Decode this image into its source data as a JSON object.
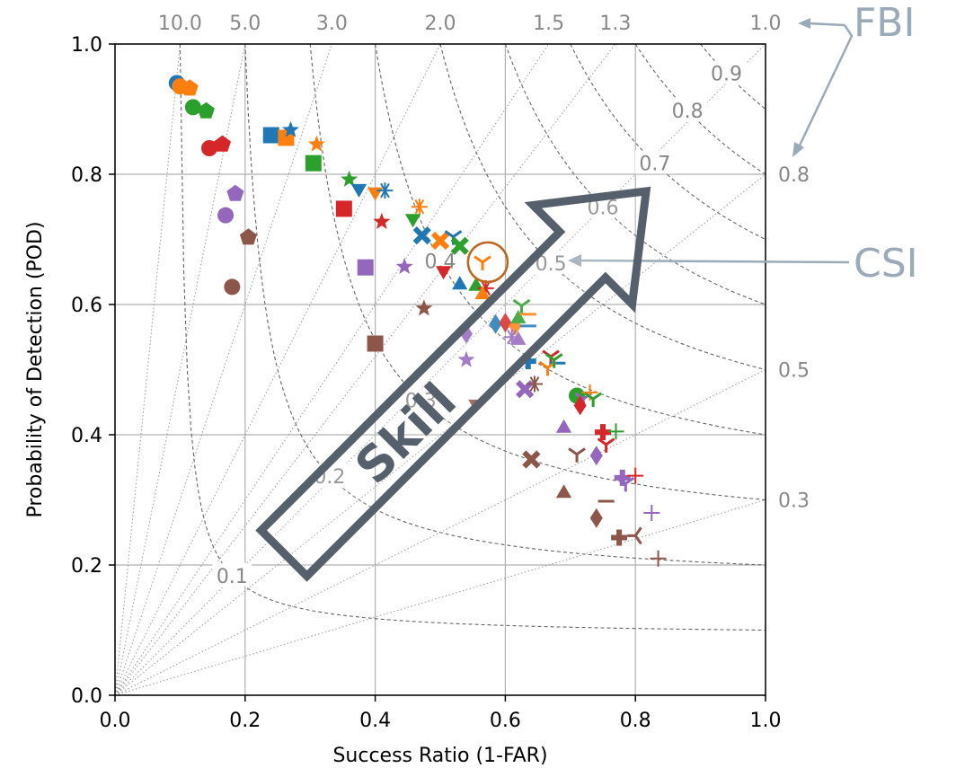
{
  "chart_data": {
    "type": "scatter",
    "xlabel": "Success Ratio (1-FAR)",
    "ylabel": "Probability of Detection (POD)",
    "xlim": [
      0.0,
      1.0
    ],
    "ylim": [
      0.0,
      1.0
    ],
    "xticks": [
      "0.0",
      "0.2",
      "0.4",
      "0.6",
      "0.8",
      "1.0"
    ],
    "yticks": [
      "0.0",
      "0.2",
      "0.4",
      "0.6",
      "0.8",
      "1.0"
    ],
    "grid": true,
    "bias_lines": [
      {
        "bias": 10.0,
        "label": "10.0"
      },
      {
        "bias": 5.0,
        "label": "5.0"
      },
      {
        "bias": 3.0,
        "label": "3.0"
      },
      {
        "bias": 2.0,
        "label": "2.0"
      },
      {
        "bias": 1.5,
        "label": "1.5"
      },
      {
        "bias": 1.3,
        "label": "1.3"
      },
      {
        "bias": 1.0,
        "label": "1.0"
      },
      {
        "bias": 0.8,
        "label": "0.8"
      },
      {
        "bias": 0.5,
        "label": "0.5"
      },
      {
        "bias": 0.3,
        "label": "0.3"
      }
    ],
    "csi_lines": [
      {
        "csi": 0.1,
        "label": "0.1",
        "label_x": 0.18
      },
      {
        "csi": 0.2,
        "label": "0.2",
        "label_x": 0.33
      },
      {
        "csi": 0.3,
        "label": "0.3",
        "label_x": 0.47
      },
      {
        "csi": 0.4,
        "label": "0.4",
        "label_x": 0.5
      },
      {
        "csi": 0.5,
        "label": "0.5",
        "label_x": 0.67
      },
      {
        "csi": 0.6,
        "label": "0.6",
        "label_x": 0.75
      },
      {
        "csi": 0.7,
        "label": "0.7",
        "label_x": 0.83
      },
      {
        "csi": 0.8,
        "label": "0.8",
        "label_x": 0.88
      },
      {
        "csi": 0.9,
        "label": "0.9",
        "label_x": 0.94
      }
    ],
    "points": [
      {
        "x": 0.095,
        "y": 0.94,
        "marker": "circle",
        "color": "#1f77b4"
      },
      {
        "x": 0.1,
        "y": 0.935,
        "marker": "circle",
        "color": "#ff7f0e"
      },
      {
        "x": 0.115,
        "y": 0.932,
        "marker": "pentagon",
        "color": "#ff7f0e"
      },
      {
        "x": 0.12,
        "y": 0.903,
        "marker": "circle",
        "color": "#2ca02c"
      },
      {
        "x": 0.14,
        "y": 0.897,
        "marker": "pentagon",
        "color": "#2ca02c"
      },
      {
        "x": 0.145,
        "y": 0.84,
        "marker": "circle",
        "color": "#d62728"
      },
      {
        "x": 0.165,
        "y": 0.846,
        "marker": "pentagon",
        "color": "#d62728"
      },
      {
        "x": 0.185,
        "y": 0.77,
        "marker": "pentagon",
        "color": "#9467bd"
      },
      {
        "x": 0.17,
        "y": 0.737,
        "marker": "circle",
        "color": "#9467bd"
      },
      {
        "x": 0.205,
        "y": 0.703,
        "marker": "pentagon",
        "color": "#8c564b"
      },
      {
        "x": 0.18,
        "y": 0.627,
        "marker": "circle",
        "color": "#8c564b"
      },
      {
        "x": 0.24,
        "y": 0.86,
        "marker": "square",
        "color": "#1f77b4"
      },
      {
        "x": 0.263,
        "y": 0.856,
        "marker": "square",
        "color": "#ff7f0e"
      },
      {
        "x": 0.27,
        "y": 0.868,
        "marker": "star",
        "color": "#1f77b4"
      },
      {
        "x": 0.31,
        "y": 0.846,
        "marker": "star",
        "color": "#ff7f0e"
      },
      {
        "x": 0.305,
        "y": 0.817,
        "marker": "square",
        "color": "#2ca02c"
      },
      {
        "x": 0.36,
        "y": 0.792,
        "marker": "star",
        "color": "#2ca02c"
      },
      {
        "x": 0.375,
        "y": 0.778,
        "marker": "triangle_down",
        "color": "#1f77b4"
      },
      {
        "x": 0.4,
        "y": 0.773,
        "marker": "triangle_down",
        "color": "#ff7f0e"
      },
      {
        "x": 0.415,
        "y": 0.775,
        "marker": "asterisk",
        "color": "#1f77b4"
      },
      {
        "x": 0.352,
        "y": 0.747,
        "marker": "square",
        "color": "#d62728"
      },
      {
        "x": 0.41,
        "y": 0.727,
        "marker": "star",
        "color": "#d62728"
      },
      {
        "x": 0.468,
        "y": 0.75,
        "marker": "asterisk",
        "color": "#ff7f0e"
      },
      {
        "x": 0.458,
        "y": 0.732,
        "marker": "triangle_down",
        "color": "#2ca02c"
      },
      {
        "x": 0.472,
        "y": 0.706,
        "marker": "x_filled",
        "color": "#1f77b4"
      },
      {
        "x": 0.5,
        "y": 0.698,
        "marker": "x_filled",
        "color": "#ff7f0e"
      },
      {
        "x": 0.52,
        "y": 0.704,
        "marker": "tri_down",
        "color": "#1f77b4"
      },
      {
        "x": 0.53,
        "y": 0.69,
        "marker": "x_filled",
        "color": "#2ca02c"
      },
      {
        "x": 0.385,
        "y": 0.657,
        "marker": "square",
        "color": "#9467bd"
      },
      {
        "x": 0.445,
        "y": 0.658,
        "marker": "star",
        "color": "#9467bd"
      },
      {
        "x": 0.505,
        "y": 0.652,
        "marker": "triangle_down",
        "color": "#d62728"
      },
      {
        "x": 0.565,
        "y": 0.665,
        "marker": "tri_down",
        "color": "#ff7f0e"
      },
      {
        "x": 0.53,
        "y": 0.63,
        "marker": "triangle",
        "color": "#1f77b4"
      },
      {
        "x": 0.555,
        "y": 0.628,
        "marker": "triangle",
        "color": "#2ca02c"
      },
      {
        "x": 0.57,
        "y": 0.625,
        "marker": "asterisk",
        "color": "#d62728"
      },
      {
        "x": 0.565,
        "y": 0.615,
        "marker": "triangle",
        "color": "#ff7f0e"
      },
      {
        "x": 0.475,
        "y": 0.594,
        "marker": "star",
        "color": "#8c564b"
      },
      {
        "x": 0.4,
        "y": 0.54,
        "marker": "square",
        "color": "#8c564b"
      },
      {
        "x": 0.585,
        "y": 0.57,
        "marker": "diamond",
        "color": "#1f77b4"
      },
      {
        "x": 0.6,
        "y": 0.572,
        "marker": "diamond",
        "color": "#d62728"
      },
      {
        "x": 0.615,
        "y": 0.567,
        "marker": "diamond",
        "color": "#ff7f0e"
      },
      {
        "x": 0.62,
        "y": 0.578,
        "marker": "triangle",
        "color": "#2ca02c"
      },
      {
        "x": 0.625,
        "y": 0.598,
        "marker": "tri_down",
        "color": "#2ca02c"
      },
      {
        "x": 0.635,
        "y": 0.585,
        "marker": "hline",
        "color": "#ff7f0e"
      },
      {
        "x": 0.635,
        "y": 0.567,
        "marker": "hline",
        "color": "#1f77b4"
      },
      {
        "x": 0.61,
        "y": 0.55,
        "marker": "asterisk",
        "color": "#9467bd"
      },
      {
        "x": 0.62,
        "y": 0.545,
        "marker": "triangle",
        "color": "#9467bd"
      },
      {
        "x": 0.54,
        "y": 0.555,
        "marker": "diamond",
        "color": "#9467bd"
      },
      {
        "x": 0.635,
        "y": 0.513,
        "marker": "plus_filled",
        "color": "#1f77b4"
      },
      {
        "x": 0.67,
        "y": 0.52,
        "marker": "tri_down",
        "color": "#d62728"
      },
      {
        "x": 0.68,
        "y": 0.51,
        "marker": "hline",
        "color": "#1f77b4"
      },
      {
        "x": 0.665,
        "y": 0.503,
        "marker": "tri_down",
        "color": "#ff7f0e"
      },
      {
        "x": 0.675,
        "y": 0.515,
        "marker": "tri_down",
        "color": "#2ca02c"
      },
      {
        "x": 0.63,
        "y": 0.47,
        "marker": "x_filled",
        "color": "#9467bd"
      },
      {
        "x": 0.645,
        "y": 0.478,
        "marker": "asterisk",
        "color": "#8c564b"
      },
      {
        "x": 0.54,
        "y": 0.515,
        "marker": "star",
        "color": "#9467bd"
      },
      {
        "x": 0.555,
        "y": 0.447,
        "marker": "triangle_down",
        "color": "#8c564b"
      },
      {
        "x": 0.71,
        "y": 0.46,
        "marker": "circle",
        "color": "#2ca02c"
      },
      {
        "x": 0.72,
        "y": 0.455,
        "marker": "tri_down",
        "color": "#9467bd"
      },
      {
        "x": 0.73,
        "y": 0.465,
        "marker": "plus",
        "color": "#ff7f0e"
      },
      {
        "x": 0.735,
        "y": 0.455,
        "marker": "tri_down",
        "color": "#2ca02c"
      },
      {
        "x": 0.715,
        "y": 0.445,
        "marker": "diamond",
        "color": "#d62728"
      },
      {
        "x": 0.69,
        "y": 0.41,
        "marker": "triangle",
        "color": "#9467bd"
      },
      {
        "x": 0.75,
        "y": 0.404,
        "marker": "plus_filled",
        "color": "#d62728"
      },
      {
        "x": 0.77,
        "y": 0.405,
        "marker": "plus",
        "color": "#2ca02c"
      },
      {
        "x": 0.755,
        "y": 0.385,
        "marker": "tri_down",
        "color": "#d62728"
      },
      {
        "x": 0.64,
        "y": 0.362,
        "marker": "x_filled",
        "color": "#8c564b"
      },
      {
        "x": 0.71,
        "y": 0.37,
        "marker": "tri_down",
        "color": "#8c564b"
      },
      {
        "x": 0.74,
        "y": 0.368,
        "marker": "diamond",
        "color": "#9467bd"
      },
      {
        "x": 0.78,
        "y": 0.334,
        "marker": "plus_filled",
        "color": "#9467bd"
      },
      {
        "x": 0.785,
        "y": 0.325,
        "marker": "tri_down",
        "color": "#9467bd"
      },
      {
        "x": 0.8,
        "y": 0.337,
        "marker": "plus",
        "color": "#d62728"
      },
      {
        "x": 0.69,
        "y": 0.31,
        "marker": "triangle",
        "color": "#8c564b"
      },
      {
        "x": 0.755,
        "y": 0.298,
        "marker": "hline",
        "color": "#8c564b"
      },
      {
        "x": 0.74,
        "y": 0.272,
        "marker": "diamond",
        "color": "#8c564b"
      },
      {
        "x": 0.825,
        "y": 0.28,
        "marker": "plus",
        "color": "#9467bd"
      },
      {
        "x": 0.775,
        "y": 0.242,
        "marker": "plus_filled",
        "color": "#8c564b"
      },
      {
        "x": 0.8,
        "y": 0.245,
        "marker": "tri_left",
        "color": "#8c564b"
      },
      {
        "x": 0.835,
        "y": 0.21,
        "marker": "plus",
        "color": "#8c564b"
      }
    ],
    "highlight": {
      "x": 0.573,
      "y": 0.665,
      "color": "#c0651e"
    },
    "annotations": {
      "fbi_label": "FBI",
      "csi_label": "CSI",
      "skill_label": "Skill",
      "annotation_color": "#9aaab8",
      "arrow_color": "#56606c"
    }
  }
}
